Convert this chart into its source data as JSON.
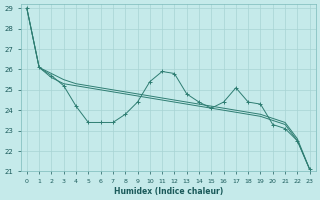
{
  "xlabel": "Humidex (Indice chaleur)",
  "ylabel": "",
  "background_color": "#c5eaea",
  "grid_color": "#a8d4d4",
  "line_color": "#2e7d72",
  "xlim": [
    -0.5,
    23.5
  ],
  "ylim": [
    21,
    29.2
  ],
  "yticks": [
    21,
    22,
    23,
    24,
    25,
    26,
    27,
    28,
    29
  ],
  "xticks": [
    0,
    1,
    2,
    3,
    4,
    5,
    6,
    7,
    8,
    9,
    10,
    11,
    12,
    13,
    14,
    15,
    16,
    17,
    18,
    19,
    20,
    21,
    22,
    23
  ],
  "series_jagged": [
    29,
    26.1,
    25.7,
    25.2,
    24.2,
    23.4,
    23.4,
    23.4,
    23.8,
    24.4,
    25.4,
    25.9,
    25.8,
    24.8,
    24.4,
    24.1,
    24.4,
    25.1,
    24.4,
    24.3,
    23.3,
    23.1,
    22.5,
    21.1
  ],
  "series_smooth1": [
    29,
    26.1,
    25.6,
    25.3,
    25.2,
    25.1,
    25.0,
    24.9,
    24.8,
    24.7,
    24.6,
    24.5,
    24.4,
    24.3,
    24.2,
    24.1,
    24.0,
    23.9,
    23.8,
    23.7,
    23.5,
    23.3,
    22.5,
    21.1
  ],
  "series_smooth2": [
    29,
    26.1,
    25.8,
    25.5,
    25.3,
    25.2,
    25.1,
    25.0,
    24.9,
    24.8,
    24.7,
    24.6,
    24.5,
    24.4,
    24.3,
    24.2,
    24.1,
    24.0,
    23.9,
    23.8,
    23.6,
    23.4,
    22.6,
    21.1
  ]
}
